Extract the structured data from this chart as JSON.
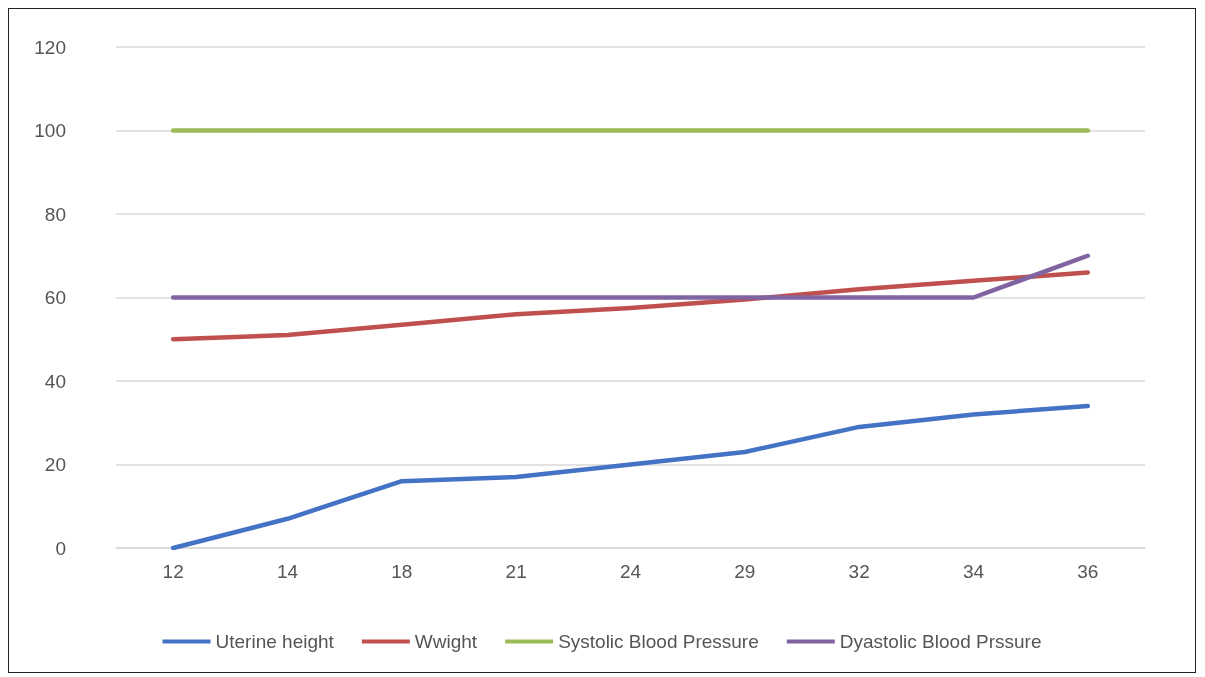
{
  "chart_data": {
    "type": "line",
    "categories": [
      "12",
      "14",
      "18",
      "21",
      "24",
      "29",
      "32",
      "34",
      "36"
    ],
    "series": [
      {
        "name": "Uterine height",
        "color": "#4472c4",
        "values": [
          0,
          7,
          16,
          17,
          20,
          23,
          29,
          32,
          34
        ]
      },
      {
        "name": "Wwight",
        "color": "#c0504d",
        "values": [
          50,
          51,
          53.5,
          56,
          57.5,
          59.5,
          62,
          64,
          66
        ]
      },
      {
        "name": "Systolic Blood Pressure",
        "color": "#9bbb59",
        "values": [
          100,
          100,
          100,
          100,
          100,
          100,
          100,
          100,
          100
        ]
      },
      {
        "name": "Dyastolic Blood Prssure",
        "color": "#8064a2",
        "values": [
          60,
          60,
          60,
          60,
          60,
          60,
          60,
          60,
          70
        ]
      }
    ],
    "ylim": [
      0,
      120
    ],
    "yticks": [
      0,
      20,
      40,
      60,
      80,
      100,
      120
    ],
    "grid": "y",
    "legend": "bottom",
    "marker": "none",
    "line_style": "solid"
  }
}
